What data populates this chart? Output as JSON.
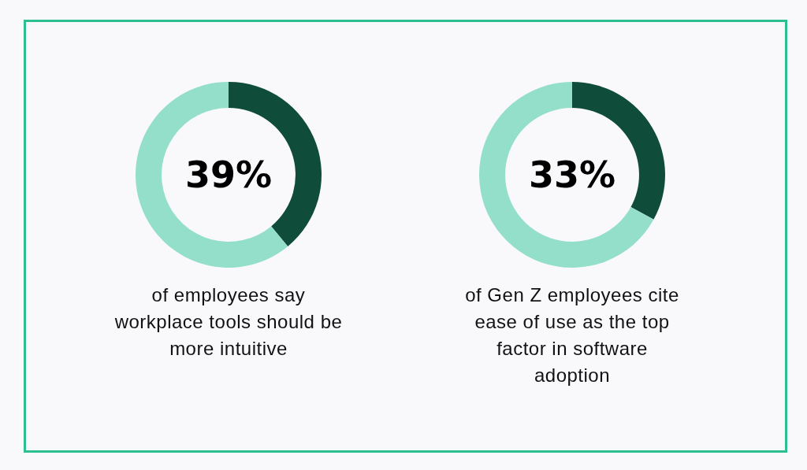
{
  "chart_data": [
    {
      "type": "donut",
      "categories": [
        null,
        null
      ],
      "values": [
        39,
        61
      ],
      "colors": [
        "#0f4d3a",
        "#93dfc9"
      ],
      "value_labels": [
        "39%",
        null
      ],
      "annotations": [
        "of employees say workplace tools should be more intuitive"
      ],
      "legend": false
    },
    {
      "type": "donut",
      "categories": [
        null,
        null
      ],
      "values": [
        33,
        67
      ],
      "colors": [
        "#0f4d3a",
        "#93dfc9"
      ],
      "value_labels": [
        "33%",
        null
      ],
      "annotations": [
        "of Gen Z employees cite ease of use as the top factor in software adoption"
      ],
      "legend": false
    }
  ]
}
